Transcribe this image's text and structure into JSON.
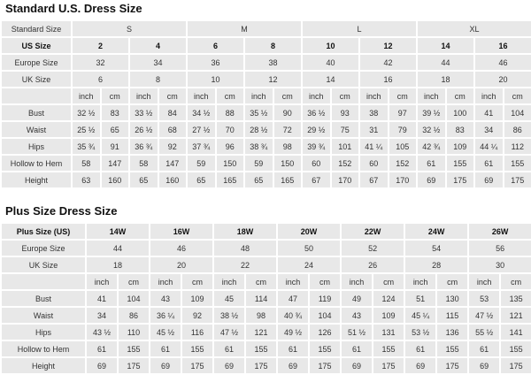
{
  "standard": {
    "title": "Standard U.S. Dress Size",
    "standard_size_label": "Standard Size",
    "groups": [
      "S",
      "M",
      "L",
      "XL"
    ],
    "us_size_label": "US Size",
    "us_sizes": [
      "2",
      "4",
      "6",
      "8",
      "10",
      "12",
      "14",
      "16"
    ],
    "europe_label": "Europe Size",
    "europe": [
      "32",
      "34",
      "36",
      "38",
      "40",
      "42",
      "44",
      "46"
    ],
    "uk_label": "UK Size",
    "uk": [
      "6",
      "8",
      "10",
      "12",
      "14",
      "16",
      "18",
      "20"
    ],
    "unit_inch": "inch",
    "unit_cm": "cm",
    "rows": [
      {
        "label": "Bust",
        "values": [
          "32 ½",
          "83",
          "33 ½",
          "84",
          "34 ½",
          "88",
          "35 ½",
          "90",
          "36 ½",
          "93",
          "38",
          "97",
          "39 ½",
          "100",
          "41",
          "104"
        ]
      },
      {
        "label": "Waist",
        "values": [
          "25 ½",
          "65",
          "26 ½",
          "68",
          "27 ½",
          "70",
          "28 ½",
          "72",
          "29 ½",
          "75",
          "31",
          "79",
          "32 ½",
          "83",
          "34",
          "86"
        ]
      },
      {
        "label": "Hips",
        "values": [
          "35 ¾",
          "91",
          "36 ¾",
          "92",
          "37 ¾",
          "96",
          "38 ¾",
          "98",
          "39 ¾",
          "101",
          "41 ¼",
          "105",
          "42 ¾",
          "109",
          "44 ¼",
          "112"
        ]
      },
      {
        "label": "Hollow to Hem",
        "values": [
          "58",
          "147",
          "58",
          "147",
          "59",
          "150",
          "59",
          "150",
          "60",
          "152",
          "60",
          "152",
          "61",
          "155",
          "61",
          "155"
        ]
      },
      {
        "label": "Height",
        "values": [
          "63",
          "160",
          "65",
          "160",
          "65",
          "165",
          "65",
          "165",
          "67",
          "170",
          "67",
          "170",
          "69",
          "175",
          "69",
          "175"
        ]
      }
    ]
  },
  "plus": {
    "title": "Plus Size Dress Size",
    "us_size_label": "Plus Size (US)",
    "us_sizes": [
      "14W",
      "16W",
      "18W",
      "20W",
      "22W",
      "24W",
      "26W"
    ],
    "europe_label": "Europe Size",
    "europe": [
      "44",
      "46",
      "48",
      "50",
      "52",
      "54",
      "56"
    ],
    "uk_label": "UK Size",
    "uk": [
      "18",
      "20",
      "22",
      "24",
      "26",
      "28",
      "30"
    ],
    "unit_inch": "inch",
    "unit_cm": "cm",
    "rows": [
      {
        "label": "Bust",
        "values": [
          "41",
          "104",
          "43",
          "109",
          "45",
          "114",
          "47",
          "119",
          "49",
          "124",
          "51",
          "130",
          "53",
          "135"
        ]
      },
      {
        "label": "Waist",
        "values": [
          "34",
          "86",
          "36 ¼",
          "92",
          "38 ½",
          "98",
          "40 ¾",
          "104",
          "43",
          "109",
          "45 ¼",
          "115",
          "47 ½",
          "121"
        ]
      },
      {
        "label": "Hips",
        "values": [
          "43 ½",
          "110",
          "45 ½",
          "116",
          "47 ½",
          "121",
          "49 ½",
          "126",
          "51 ½",
          "131",
          "53 ½",
          "136",
          "55 ½",
          "141"
        ]
      },
      {
        "label": "Hollow to Hem",
        "values": [
          "61",
          "155",
          "61",
          "155",
          "61",
          "155",
          "61",
          "155",
          "61",
          "155",
          "61",
          "155",
          "61",
          "155"
        ]
      },
      {
        "label": "Height",
        "values": [
          "69",
          "175",
          "69",
          "175",
          "69",
          "175",
          "69",
          "175",
          "69",
          "175",
          "69",
          "175",
          "69",
          "175"
        ]
      }
    ]
  }
}
